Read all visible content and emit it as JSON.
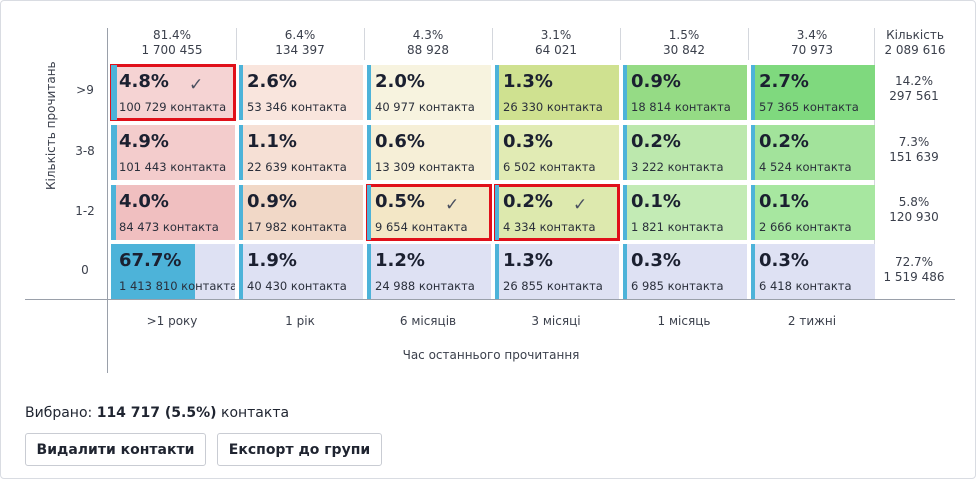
{
  "y_axis_title": "Кількість прочитань",
  "x_axis_title": "Час останнього прочитання",
  "total_header": {
    "label": "Кількість",
    "count": "2 089 616"
  },
  "columns": [
    {
      "pct": "81.4%",
      "count": "1 700 455",
      "label": ">1 року"
    },
    {
      "pct": "6.4%",
      "count": "134 397",
      "label": "1 рік"
    },
    {
      "pct": "4.3%",
      "count": "88 928",
      "label": "6 місяців"
    },
    {
      "pct": "3.1%",
      "count": "64 021",
      "label": "3 місяці"
    },
    {
      "pct": "1.5%",
      "count": "30 842",
      "label": "1 місяць"
    },
    {
      "pct": "3.4%",
      "count": "70 973",
      "label": "2 тижні"
    }
  ],
  "rows": [
    {
      "label": ">9",
      "total": {
        "pct": "14.2%",
        "count": "297 561"
      },
      "cells": [
        {
          "pct": "4.8%",
          "count": "100 729 контакта",
          "fill": 0.048,
          "selected": true,
          "check": "✓",
          "color": "#f5d3d3"
        },
        {
          "pct": "2.6%",
          "count": "53 346 контакта",
          "fill": 0.026,
          "selected": false,
          "check": "",
          "color": "#f9e5dd"
        },
        {
          "pct": "2.0%",
          "count": "40 977 контакта",
          "fill": 0.02,
          "selected": false,
          "check": "",
          "color": "#f7f3df"
        },
        {
          "pct": "1.3%",
          "count": "26 330 контакта",
          "fill": 0.013,
          "selected": false,
          "check": "",
          "color": "#cfe190"
        },
        {
          "pct": "0.9%",
          "count": "18 814 контакта",
          "fill": 0.009,
          "selected": false,
          "check": "",
          "color": "#95db85"
        },
        {
          "pct": "2.7%",
          "count": "57 365 контакта",
          "fill": 0.027,
          "selected": false,
          "check": "",
          "color": "#7fd97e"
        }
      ]
    },
    {
      "label": "3-8",
      "total": {
        "pct": "7.3%",
        "count": "151 639"
      },
      "cells": [
        {
          "pct": "4.9%",
          "count": "101 443 контакта",
          "fill": 0.049,
          "selected": false,
          "check": "",
          "color": "#f3cccc"
        },
        {
          "pct": "1.1%",
          "count": "22 639 контакта",
          "fill": 0.011,
          "selected": false,
          "check": "",
          "color": "#f6e0d5"
        },
        {
          "pct": "0.6%",
          "count": "13 309 контакта",
          "fill": 0.006,
          "selected": false,
          "check": "",
          "color": "#f6efd7"
        },
        {
          "pct": "0.3%",
          "count": "6 502 контакта",
          "fill": 0.003,
          "selected": false,
          "check": "",
          "color": "#e1ebb4"
        },
        {
          "pct": "0.2%",
          "count": "3 222 контакта",
          "fill": 0.002,
          "selected": false,
          "check": "",
          "color": "#bce8ad"
        },
        {
          "pct": "0.2%",
          "count": "4 524 контакта",
          "fill": 0.002,
          "selected": false,
          "check": "",
          "color": "#a2e39b"
        }
      ]
    },
    {
      "label": "1-2",
      "total": {
        "pct": "5.8%",
        "count": "120 930"
      },
      "cells": [
        {
          "pct": "4.0%",
          "count": "84 473 контакта",
          "fill": 0.04,
          "selected": false,
          "check": "",
          "color": "#f0bfc0"
        },
        {
          "pct": "0.9%",
          "count": "17 982 контакта",
          "fill": 0.009,
          "selected": false,
          "check": "",
          "color": "#f1d8c7"
        },
        {
          "pct": "0.5%",
          "count": "9 654 контакта",
          "fill": 0.005,
          "selected": true,
          "check": "✓",
          "color": "#f3e7c6"
        },
        {
          "pct": "0.2%",
          "count": "4 334 контакта",
          "fill": 0.002,
          "selected": true,
          "check": "✓",
          "color": "#dde9ae"
        },
        {
          "pct": "0.1%",
          "count": "1 821 контакта",
          "fill": 0.001,
          "selected": false,
          "check": "",
          "color": "#c3ebb5"
        },
        {
          "pct": "0.1%",
          "count": "2 666 контакта",
          "fill": 0.001,
          "selected": false,
          "check": "",
          "color": "#a7e7a0"
        }
      ]
    },
    {
      "label": "0",
      "total": {
        "pct": "72.7%",
        "count": "1 519 486"
      },
      "cells": [
        {
          "pct": "67.7%",
          "count": "1 413 810 контакта",
          "fill": 0.677,
          "selected": false,
          "check": "",
          "color": "#dee1f3"
        },
        {
          "pct": "1.9%",
          "count": "40 430 контакта",
          "fill": 0.019,
          "selected": false,
          "check": "",
          "color": "#dee1f3"
        },
        {
          "pct": "1.2%",
          "count": "24 988 контакта",
          "fill": 0.012,
          "selected": false,
          "check": "",
          "color": "#dee1f3"
        },
        {
          "pct": "1.3%",
          "count": "26 855 контакта",
          "fill": 0.013,
          "selected": false,
          "check": "",
          "color": "#dee1f3"
        },
        {
          "pct": "0.3%",
          "count": "6 985 контакта",
          "fill": 0.003,
          "selected": false,
          "check": "",
          "color": "#dee1f3"
        },
        {
          "pct": "0.3%",
          "count": "6 418 контакта",
          "fill": 0.003,
          "selected": false,
          "check": "",
          "color": "#dee1f3"
        }
      ]
    }
  ],
  "selection": {
    "prefix": "Вибрано: ",
    "value": "114 717 (5.5%)",
    "suffix": " контакта"
  },
  "buttons": {
    "delete_label": "Видалити контакти",
    "export_label": "Експорт до групи"
  },
  "colors": {
    "bar": "#4db3d9",
    "selection_border": "#e0101a"
  }
}
